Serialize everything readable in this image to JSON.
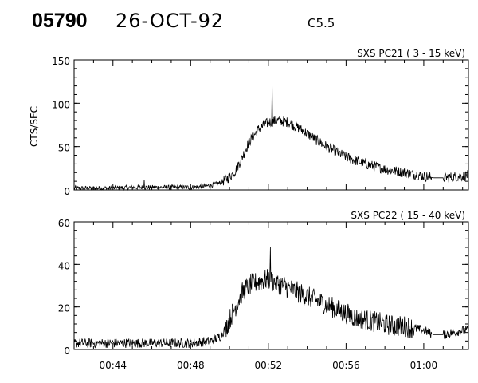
{
  "header": {
    "event_id": "05790",
    "date": "26-OCT-92",
    "flare_class": "C5.5"
  },
  "chart_data": [
    {
      "type": "line",
      "title": "SXS PC21  (  3 - 15 keV)",
      "xlabel": "",
      "ylabel": "CTS/SEC",
      "x_unit": "minutes after 00:00 UT",
      "xlim": [
        42.0,
        62.3
      ],
      "ylim": [
        0,
        150
      ],
      "y_ticks": [
        0,
        50,
        100,
        150
      ],
      "x_ticks": [
        "00:44",
        "00:48",
        "00:52",
        "00:56",
        "01:00"
      ],
      "x_tick_values": [
        44,
        48,
        52,
        56,
        60
      ],
      "noise_amplitude": 6,
      "series": [
        {
          "x": [
            42.0,
            43.0,
            44.0,
            45.0,
            46.0,
            47.0,
            48.0,
            49.0,
            49.5,
            50.0,
            50.3,
            50.6,
            51.0,
            51.5,
            52.0,
            52.5,
            53.0,
            53.5,
            54.0,
            54.5,
            55.0,
            55.5,
            56.0,
            56.5,
            57.0,
            57.5,
            58.0,
            58.5,
            59.0,
            59.5,
            60.0,
            60.5,
            61.0,
            61.5,
            62.0,
            62.3
          ],
          "y": [
            2,
            2,
            2,
            3,
            3,
            3,
            3,
            5,
            8,
            15,
            22,
            35,
            55,
            70,
            78,
            80,
            78,
            72,
            65,
            57,
            50,
            44,
            38,
            34,
            30,
            27,
            24,
            22,
            20,
            18,
            16,
            14,
            14,
            15,
            16,
            17
          ]
        }
      ],
      "spikes": [
        {
          "x": 52.2,
          "y": 120
        },
        {
          "x": 45.6,
          "y": 12
        }
      ]
    },
    {
      "type": "line",
      "title": "SXS PC22  ( 15 - 40 keV)",
      "xlabel": "",
      "ylabel": "",
      "x_unit": "minutes after 00:00 UT",
      "xlim": [
        42.0,
        62.3
      ],
      "ylim": [
        0,
        60
      ],
      "y_ticks": [
        0,
        20,
        40,
        60
      ],
      "x_ticks": [
        "00:44",
        "00:48",
        "00:52",
        "00:56",
        "01:00"
      ],
      "x_tick_values": [
        44,
        48,
        52,
        56,
        60
      ],
      "noise_amplitude": 5,
      "series": [
        {
          "x": [
            42.0,
            43.0,
            44.0,
            45.0,
            46.0,
            47.0,
            48.0,
            49.0,
            49.5,
            49.8,
            50.2,
            50.6,
            51.0,
            51.5,
            52.0,
            52.5,
            53.0,
            53.5,
            54.0,
            54.5,
            55.0,
            55.5,
            56.0,
            56.5,
            57.0,
            57.5,
            58.0,
            58.5,
            59.0,
            59.5,
            60.0,
            60.5,
            61.0,
            61.5,
            62.0,
            62.3
          ],
          "y": [
            3,
            3,
            3,
            3,
            3,
            3,
            3,
            4,
            6,
            10,
            18,
            26,
            30,
            32,
            33,
            31,
            29,
            27,
            25,
            23,
            21,
            19,
            17,
            15,
            14,
            13,
            12,
            11,
            11,
            10,
            9,
            7,
            7,
            8,
            9,
            9
          ]
        }
      ],
      "spikes": [
        {
          "x": 52.1,
          "y": 48
        }
      ]
    }
  ]
}
